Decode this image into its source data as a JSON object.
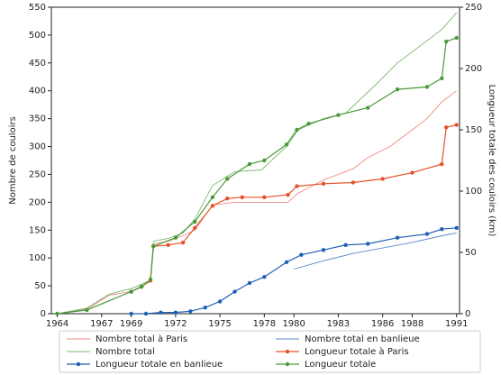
{
  "chart_data": {
    "type": "line",
    "y_label": "Nombre de couloirs",
    "y2_label": "Longueur totale des couloirs (km)",
    "xlim": [
      1963.6,
      1991.2
    ],
    "xticks": [
      1964,
      1967,
      1969,
      1972,
      1975,
      1978,
      1980,
      1983,
      1986,
      1988,
      1991
    ],
    "ylim": [
      0,
      550
    ],
    "yticks": [
      0,
      50,
      100,
      150,
      200,
      250,
      300,
      350,
      400,
      450,
      500,
      550
    ],
    "y2lim": [
      0,
      250
    ],
    "y2ticks": [
      0,
      50,
      100,
      150,
      200,
      250
    ],
    "legend": "bottom",
    "series": [
      {
        "name": "Nombre total à Paris",
        "color": "#f08a80",
        "markers": false,
        "x": [
          1964,
          1966,
          1967.5,
          1969,
          1970.3,
          1970.5,
          1971.5,
          1972.5,
          1973.3,
          1974.5,
          1976,
          1978,
          1979.6,
          1980.2,
          1982,
          1984,
          1985,
          1986.5,
          1988,
          1989,
          1990,
          1991
        ],
        "values": [
          0,
          8,
          33,
          40,
          58,
          125,
          130,
          140,
          150,
          195,
          200,
          200,
          200,
          215,
          240,
          260,
          280,
          300,
          330,
          350,
          380,
          400
        ]
      },
      {
        "name": "Nombre total",
        "color": "#7cb870",
        "markers": false,
        "x": [
          1964,
          1966,
          1967.5,
          1969,
          1970.3,
          1970.5,
          1971.5,
          1972.5,
          1973.3,
          1974.5,
          1976,
          1977.8,
          1979.5,
          1980.3,
          1982,
          1983.5,
          1985.5,
          1987,
          1988.5,
          1990,
          1991
        ],
        "values": [
          0,
          10,
          35,
          45,
          60,
          130,
          135,
          145,
          170,
          230,
          255,
          258,
          300,
          330,
          350,
          360,
          410,
          450,
          480,
          510,
          540
        ]
      },
      {
        "name": "Longueur totale en banlieue",
        "color": "#1f5fb4",
        "markers": true,
        "axis": "y2",
        "x": [
          1969,
          1970,
          1971,
          1972,
          1973,
          1974,
          1975,
          1976,
          1977,
          1978,
          1979.5,
          1980.5,
          1982,
          1983.5,
          1985,
          1987,
          1989,
          1990,
          1991
        ],
        "values": [
          0,
          0,
          1,
          1,
          2,
          5,
          10,
          18,
          25,
          30,
          42,
          48,
          52,
          56,
          57,
          62,
          65,
          69,
          70
        ]
      },
      {
        "name": "Nombre total en banlieue",
        "color": "#5a86c4",
        "markers": false,
        "x": [
          1980,
          1982,
          1984,
          1986,
          1988,
          1990,
          1991
        ],
        "values": [
          80,
          95,
          108,
          118,
          128,
          140,
          145
        ]
      },
      {
        "name": "Longueur totale à Paris",
        "color": "#e8502a",
        "markers": true,
        "axis": "y2",
        "x": [
          1969,
          1969.7,
          1970.3,
          1970.5,
          1971.5,
          1972.5,
          1973.3,
          1974.5,
          1975.5,
          1976.5,
          1978,
          1979.6,
          1980.2,
          1982,
          1984,
          1986,
          1988,
          1990,
          1990.3,
          1991
        ],
        "values": [
          18,
          22,
          27,
          55,
          56,
          58,
          70,
          88,
          94,
          95,
          95,
          97,
          104,
          106,
          107,
          110,
          115,
          122,
          152,
          154
        ]
      },
      {
        "name": "Longueur totale",
        "color": "#4a9a3a",
        "markers": true,
        "axis": "y2",
        "x": [
          1964,
          1966,
          1969,
          1969.7,
          1970.3,
          1970.5,
          1972,
          1973.3,
          1974.5,
          1975.5,
          1977,
          1978,
          1979.5,
          1980.2,
          1981,
          1983,
          1985,
          1987,
          1989,
          1990,
          1990.3,
          1991
        ],
        "values": [
          0,
          3,
          18,
          22,
          28,
          55,
          62,
          75,
          95,
          110,
          122,
          125,
          138,
          150,
          155,
          162,
          168,
          183,
          185,
          192,
          222,
          225
        ]
      }
    ]
  }
}
